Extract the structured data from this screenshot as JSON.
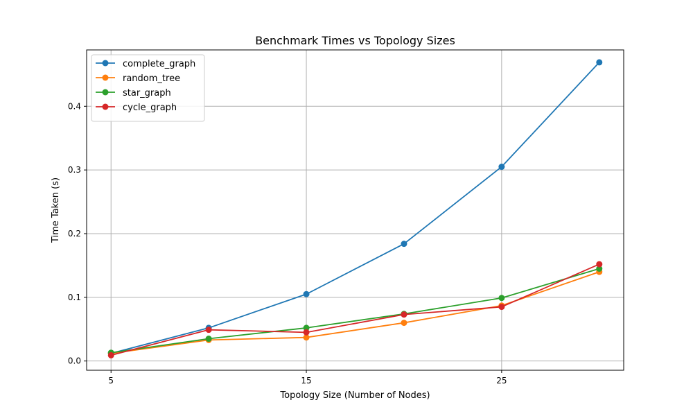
{
  "chart_data": {
    "type": "line",
    "title": "Benchmark Times vs Topology Sizes",
    "xlabel": "Topology Size (Number of Nodes)",
    "ylabel": "Time Taken (s)",
    "x": [
      5,
      10,
      15,
      20,
      25,
      30
    ],
    "xticks": [
      5,
      15,
      25
    ],
    "yticks": [
      0.0,
      0.1,
      0.2,
      0.3,
      0.4
    ],
    "xlim": [
      3.75,
      31.25
    ],
    "ylim": [
      -0.0145,
      0.4885
    ],
    "grid": true,
    "legend_position": "upper-left",
    "series": [
      {
        "name": "complete_graph",
        "color": "#1f77b4",
        "values": [
          0.012,
          0.052,
          0.105,
          0.184,
          0.305,
          0.469
        ]
      },
      {
        "name": "random_tree",
        "color": "#ff7f0e",
        "values": [
          0.012,
          0.033,
          0.037,
          0.06,
          0.087,
          0.14
        ]
      },
      {
        "name": "star_graph",
        "color": "#2ca02c",
        "values": [
          0.013,
          0.035,
          0.052,
          0.074,
          0.099,
          0.145
        ]
      },
      {
        "name": "cycle_graph",
        "color": "#d62728",
        "values": [
          0.009,
          0.049,
          0.045,
          0.073,
          0.085,
          0.152
        ]
      }
    ]
  }
}
